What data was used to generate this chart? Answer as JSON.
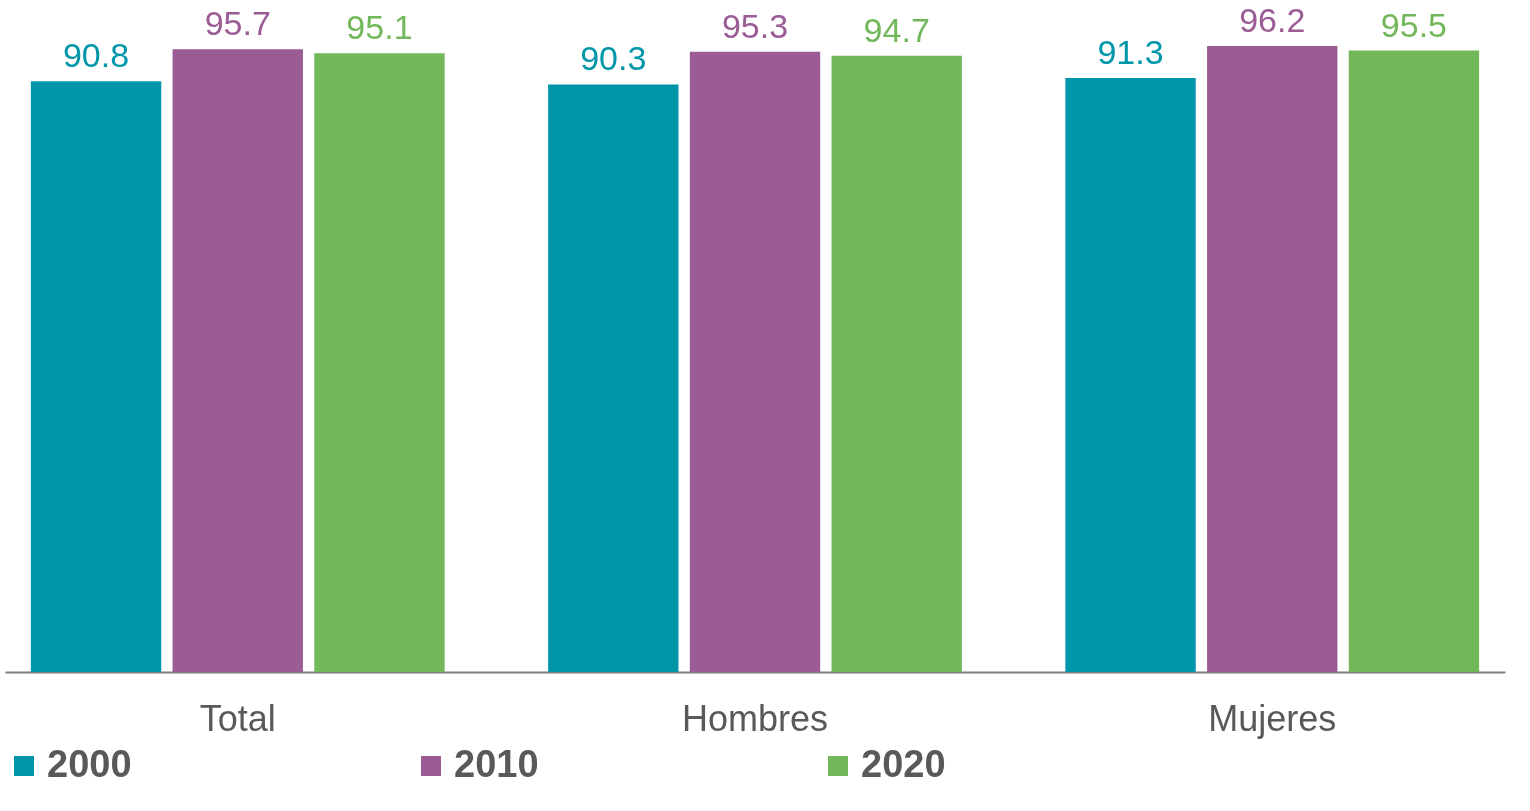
{
  "chart_data": {
    "type": "bar",
    "categories": [
      "Total",
      "Hombres",
      "Mujeres"
    ],
    "series": [
      {
        "name": "2000",
        "color": "#0096a9",
        "values": [
          90.8,
          90.3,
          91.3
        ]
      },
      {
        "name": "2010",
        "color": "#9b5b94",
        "values": [
          95.7,
          95.3,
          96.2
        ]
      },
      {
        "name": "2020",
        "color": "#72b85b",
        "values": [
          95.1,
          94.7,
          95.5
        ]
      }
    ],
    "data_labels": true,
    "legend": "bottom",
    "grid": false
  }
}
